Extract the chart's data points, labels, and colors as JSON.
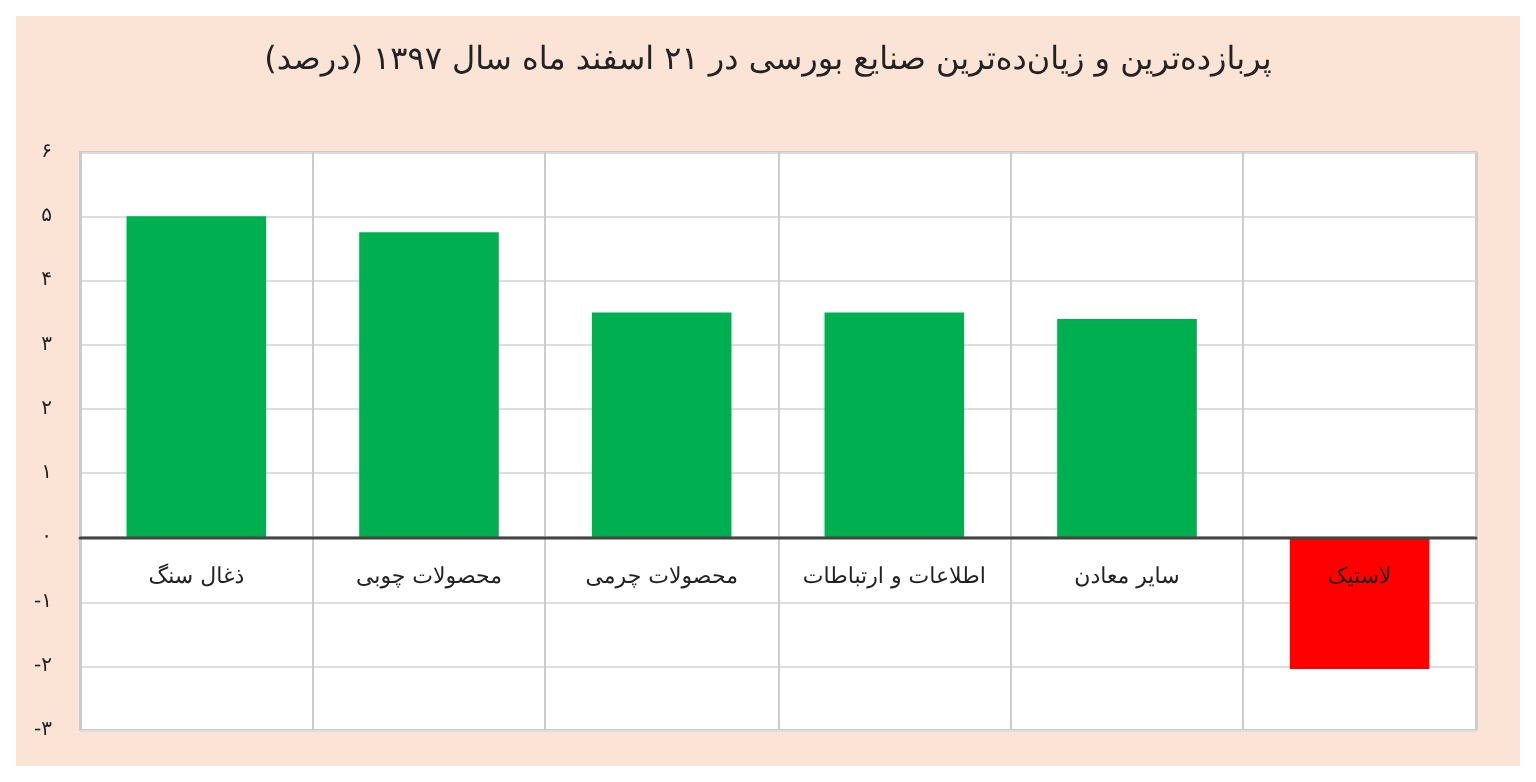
{
  "chart_data": {
    "type": "bar",
    "title": "پربازده‌ترین و زیان‌ده‌ترین صنایع بورسی در ۲۱ اسفند ماه سال ۱۳۹۷ (درصد)",
    "categories": [
      "ذغال سنگ",
      "محصولات چوبی",
      "محصولات چرمی",
      "اطلاعات و ارتباطات",
      "سایر معادن",
      "لاستیک"
    ],
    "values": [
      5.0,
      4.75,
      3.5,
      3.5,
      3.4,
      -2.05
    ],
    "colors": [
      "#00b050",
      "#00b050",
      "#00b050",
      "#00b050",
      "#00b050",
      "#ff0000"
    ],
    "ylim": [
      -3,
      6
    ],
    "yticks": [
      {
        "value": -3,
        "label": "-۳"
      },
      {
        "value": -2,
        "label": "-۲"
      },
      {
        "value": -1,
        "label": "-۱"
      },
      {
        "value": 0,
        "label": "۰"
      },
      {
        "value": 1,
        "label": "۱"
      },
      {
        "value": 2,
        "label": "۲"
      },
      {
        "value": 3,
        "label": "۳"
      },
      {
        "value": 4,
        "label": "۴"
      },
      {
        "value": 5,
        "label": "۵"
      },
      {
        "value": 6,
        "label": "۶"
      }
    ],
    "grid": true
  }
}
